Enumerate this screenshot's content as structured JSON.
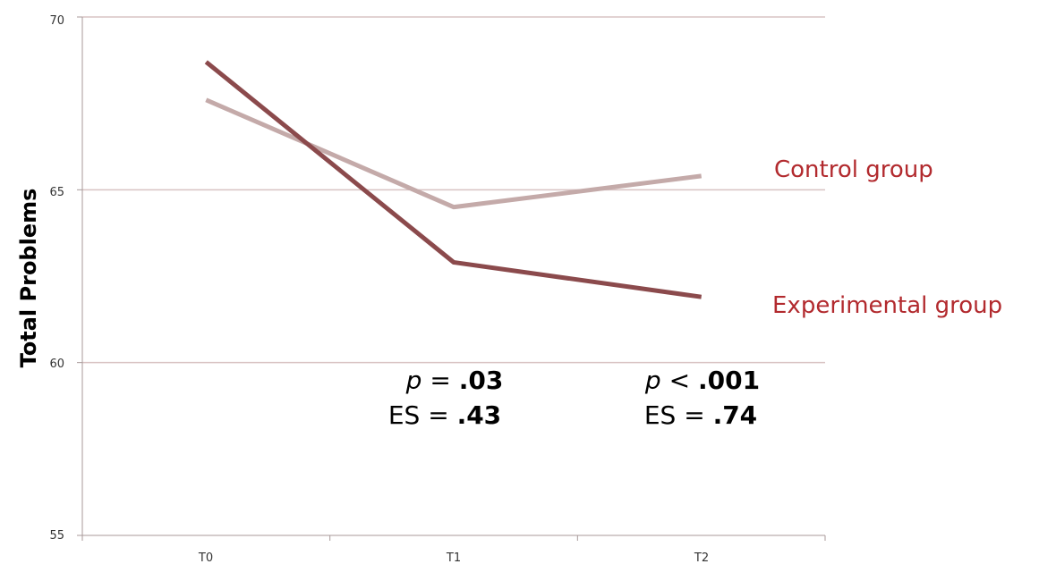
{
  "chart_data": {
    "type": "line",
    "title": "",
    "xlabel": "",
    "ylabel": "Total Problems",
    "categories": [
      "T0",
      "T1",
      "T2"
    ],
    "ylim": [
      55,
      70
    ],
    "yticks": [
      "55",
      "60",
      "65",
      "70"
    ],
    "grid": true,
    "legend": "inline-right",
    "series": [
      {
        "name": "Control group",
        "values": [
          67.6,
          64.5,
          65.4
        ],
        "color": "#c4aaa9"
      },
      {
        "name": "Experimental group",
        "values": [
          68.7,
          62.9,
          61.9
        ],
        "color": "#8b4a4c"
      }
    ],
    "annotations": [
      {
        "p_label": "p",
        "p_op": " = ",
        "p_value": ".03",
        "es_label": "ES = ",
        "es_value": ".43"
      },
      {
        "p_label": "p",
        "p_op": " < ",
        "p_value": ".001",
        "es_label": "ES = ",
        "es_value": ".74"
      }
    ],
    "colors": {
      "grid": "#d8c3c3",
      "axis": "#a89a9a",
      "label": "#b22a2e"
    }
  }
}
